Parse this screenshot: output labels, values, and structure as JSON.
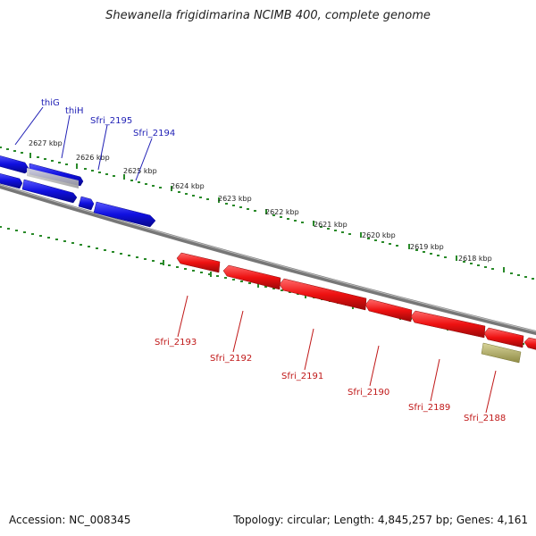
{
  "title": "Shewanella frigidimarina NCIMB 400, complete genome",
  "footer": {
    "accession": "Accession: NC_008345",
    "summary": "Topology: circular; Length: 4,845,257 bp; Genes: 4,161"
  },
  "colors": {
    "forward_gene": "#1010dd",
    "reverse_gene": "#ee1111",
    "pseudo_gene": "#b9b56a",
    "backbone": "#777777",
    "ticks": "#2a8a2a",
    "forward_label": "#1f1fb5",
    "reverse_label": "#c01818"
  },
  "scale_kbp": [
    "2627 kbp",
    "2626 kbp",
    "2625 kbp",
    "2624 kbp",
    "2623 kbp",
    "2622 kbp",
    "2621 kbp",
    "2620 kbp",
    "2619 kbp",
    "2618 kbp"
  ],
  "forward_genes": [
    "thiG",
    "thiH",
    "Sfri_2195",
    "Sfri_2194"
  ],
  "reverse_genes": [
    "Sfri_2193",
    "Sfri_2192",
    "Sfri_2191",
    "Sfri_2190",
    "Sfri_2189",
    "Sfri_2188"
  ]
}
